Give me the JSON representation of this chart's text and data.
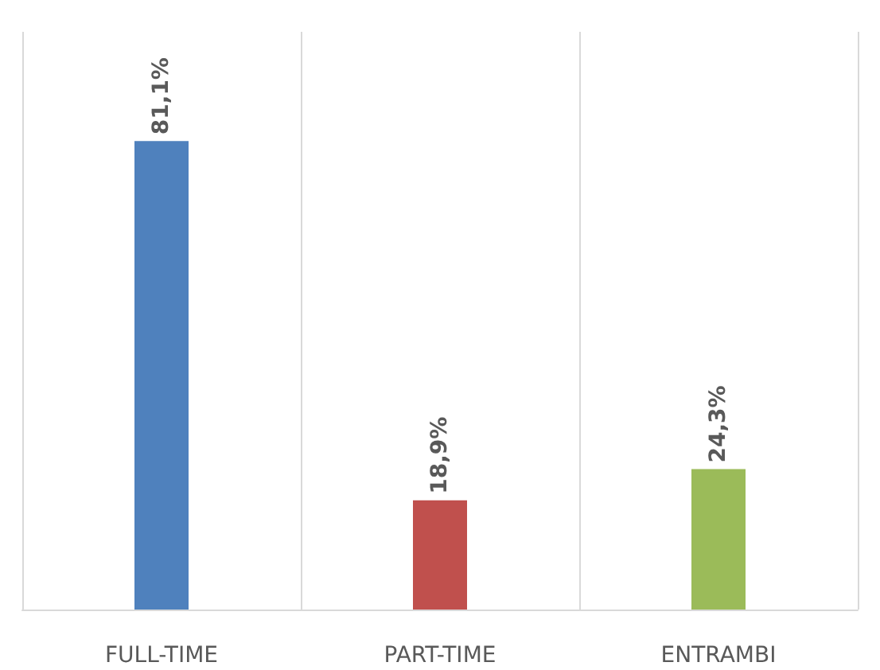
{
  "chart_data": {
    "type": "bar",
    "categories": [
      "FULL-TIME",
      "PART-TIME",
      "ENTRAMBI"
    ],
    "values": [
      81.1,
      18.9,
      24.3
    ],
    "colors": [
      "#4f81bd",
      "#c0504d",
      "#9bbb59"
    ],
    "value_labels": [
      "81,1%",
      "18,9%",
      "24,3%"
    ],
    "grid": "x"
  }
}
